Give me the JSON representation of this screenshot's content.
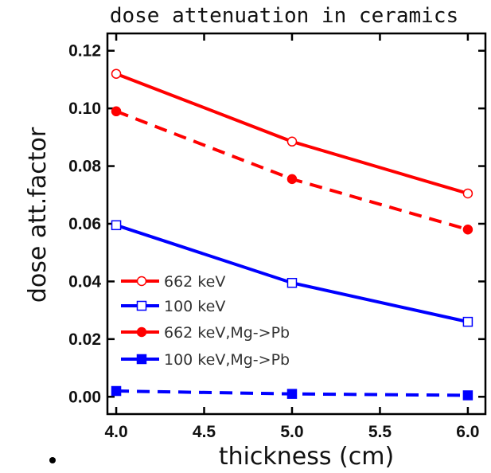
{
  "chart_data": {
    "type": "line",
    "title": "dose attenuation in ceramics",
    "xlabel": "thickness (cm)",
    "ylabel": "dose att.factor",
    "xlim": [
      3.95,
      6.1
    ],
    "ylim": [
      -0.006,
      0.126
    ],
    "xticks": [
      "4.0",
      "4.5",
      "5.0",
      "5.5",
      "6.0"
    ],
    "yticks": [
      "0.00",
      "0.02",
      "0.04",
      "0.06",
      "0.08",
      "0.10",
      "0.12"
    ],
    "grid": false,
    "legend_position": "lower-left",
    "x": [
      4.0,
      5.0,
      6.0
    ],
    "series": [
      {
        "name": "662  keV",
        "values": [
          0.112,
          0.0885,
          0.0705
        ],
        "color": "#ff0000",
        "dash": "solid",
        "marker": "open-circle"
      },
      {
        "name": "100  keV",
        "values": [
          0.0595,
          0.0395,
          0.026
        ],
        "color": "#0000ff",
        "dash": "solid",
        "marker": "open-square"
      },
      {
        "name": "662  keV,Mg->Pb",
        "values": [
          0.099,
          0.0755,
          0.058
        ],
        "color": "#ff0000",
        "dash": "dashed",
        "marker": "filled-circle"
      },
      {
        "name": "100  keV,Mg->Pb",
        "values": [
          0.002,
          0.001,
          0.0005
        ],
        "color": "#0000ff",
        "dash": "dashed",
        "marker": "filled-square"
      }
    ]
  }
}
